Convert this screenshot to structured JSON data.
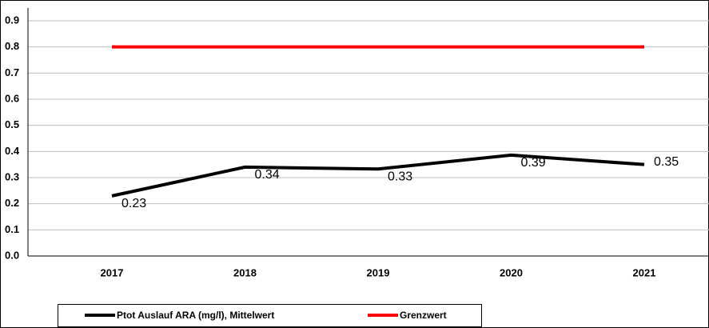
{
  "chart_data": {
    "type": "line",
    "categories": [
      "2017",
      "2018",
      "2019",
      "2020",
      "2021"
    ],
    "series": [
      {
        "name": "Ptot Auslauf ARA (mg/l), Mittelwert",
        "color": "#000000",
        "values": [
          0.23,
          0.34,
          0.333,
          0.386,
          0.35
        ],
        "value_labels": [
          "0.23",
          "0.34",
          "0.33",
          "0.39",
          "0.35"
        ]
      },
      {
        "name": "Grenzwert",
        "color": "#ff0000",
        "values": [
          0.8,
          0.8,
          0.8,
          0.8,
          0.8
        ]
      }
    ],
    "ylim": [
      0,
      0.9
    ],
    "yticks": [
      {
        "value": 0,
        "label": "0.0"
      },
      0.1,
      0.2,
      0.3,
      0.4,
      0.5,
      0.6,
      0.7,
      0.8,
      0.9
    ],
    "grid": true
  }
}
